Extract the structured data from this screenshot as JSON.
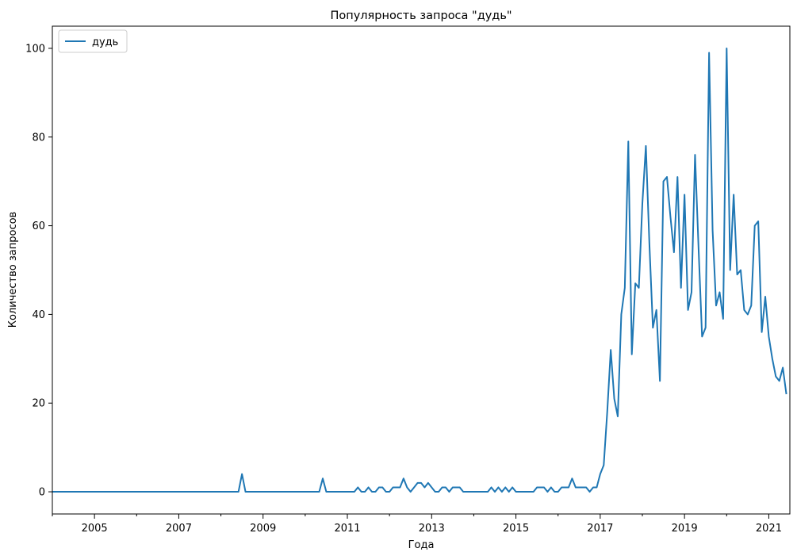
{
  "chart_data": {
    "type": "line",
    "title": "Популярность запроса \"дудь\"",
    "xlabel": "Года",
    "ylabel": "Количество запросов",
    "xlim": [
      "2004-01",
      "2021-07"
    ],
    "ylim": [
      -5,
      105
    ],
    "x_ticks": [
      "2005",
      "2007",
      "2009",
      "2011",
      "2013",
      "2015",
      "2017",
      "2019",
      "2021"
    ],
    "y_ticks": [
      "0",
      "20",
      "40",
      "60",
      "80",
      "100"
    ],
    "legend": "top-left",
    "grid": false,
    "series": [
      {
        "name": "дудь",
        "color": "#1f77b4",
        "x_start": "2004-01",
        "frequency": "monthly",
        "values": [
          0,
          0,
          0,
          0,
          0,
          0,
          0,
          0,
          0,
          0,
          0,
          0,
          0,
          0,
          0,
          0,
          0,
          0,
          0,
          0,
          0,
          0,
          0,
          0,
          0,
          0,
          0,
          0,
          0,
          0,
          0,
          0,
          0,
          0,
          0,
          0,
          0,
          0,
          0,
          0,
          0,
          0,
          0,
          0,
          0,
          0,
          0,
          0,
          0,
          0,
          0,
          0,
          0,
          0,
          4,
          0,
          0,
          0,
          0,
          0,
          0,
          0,
          0,
          0,
          0,
          0,
          0,
          0,
          0,
          0,
          0,
          0,
          0,
          0,
          0,
          0,
          0,
          3,
          0,
          0,
          0,
          0,
          0,
          0,
          0,
          0,
          0,
          1,
          0,
          0,
          1,
          0,
          0,
          1,
          1,
          0,
          0,
          1,
          1,
          1,
          3,
          1,
          0,
          1,
          2,
          2,
          1,
          2,
          1,
          0,
          0,
          1,
          1,
          0,
          1,
          1,
          1,
          0,
          0,
          0,
          0,
          0,
          0,
          0,
          0,
          1,
          0,
          1,
          0,
          1,
          0,
          1,
          0,
          0,
          0,
          0,
          0,
          0,
          1,
          1,
          1,
          0,
          1,
          0,
          0,
          1,
          1,
          1,
          3,
          1,
          1,
          1,
          1,
          0,
          1,
          1,
          4,
          6,
          18,
          32,
          21,
          17,
          40,
          46,
          79,
          31,
          47,
          46,
          65,
          78,
          56,
          37,
          41,
          25,
          70,
          71,
          62,
          54,
          71,
          46,
          67,
          41,
          45,
          76,
          55,
          35,
          37,
          99,
          59,
          42,
          45,
          39,
          100,
          50,
          67,
          49,
          50,
          41,
          40,
          42,
          60,
          61,
          36,
          44,
          35,
          30,
          26,
          25,
          28,
          22
        ]
      }
    ]
  }
}
